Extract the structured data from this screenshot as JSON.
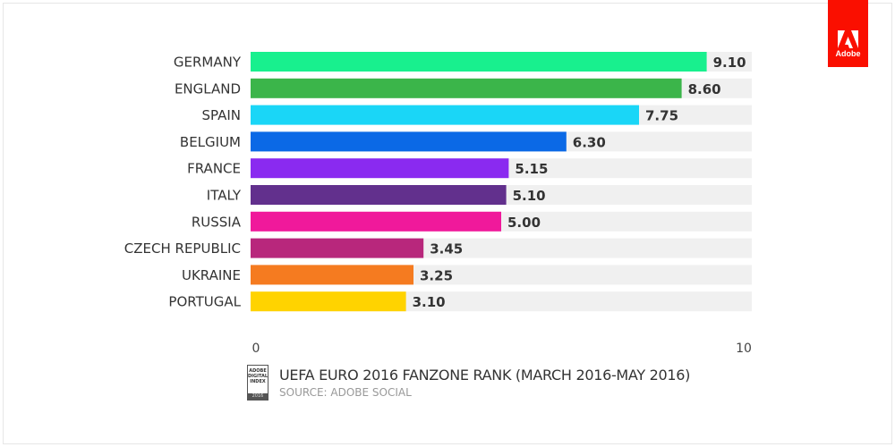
{
  "chart_data": {
    "type": "bar",
    "orientation": "horizontal",
    "title": "UEFA EURO 2016 FANZONE RANK (MARCH 2016-MAY 2016)",
    "subtitle": "SOURCE: ADOBE SOCIAL",
    "categories": [
      "GERMANY",
      "ENGLAND",
      "SPAIN",
      "BELGIUM",
      "FRANCE",
      "ITALY",
      "RUSSIA",
      "CZECH REPUBLIC",
      "UKRAINE",
      "PORTUGAL"
    ],
    "values": [
      9.1,
      8.6,
      7.75,
      6.3,
      5.15,
      5.1,
      5.0,
      3.45,
      3.25,
      3.1
    ],
    "value_labels": [
      "9.10",
      "8.60",
      "7.75",
      "6.30",
      "5.15",
      "5.10",
      "5.00",
      "3.45",
      "3.25",
      "3.10"
    ],
    "colors": [
      "#18f08e",
      "#3bb54a",
      "#1ad6f7",
      "#0b69e6",
      "#8a2af0",
      "#62308d",
      "#f0199b",
      "#b8277c",
      "#f57b20",
      "#ffd300"
    ],
    "track_color": "#f0f0f0",
    "xlim": [
      0,
      10
    ],
    "x_ticks": [
      "0",
      "10"
    ],
    "grid": false,
    "legend": "none"
  },
  "branding": {
    "logo_text": "Adobe",
    "index_badge": "ADOBE DIGITAL INDEX",
    "index_year": "2016",
    "brand_color": "#fa0f00"
  }
}
